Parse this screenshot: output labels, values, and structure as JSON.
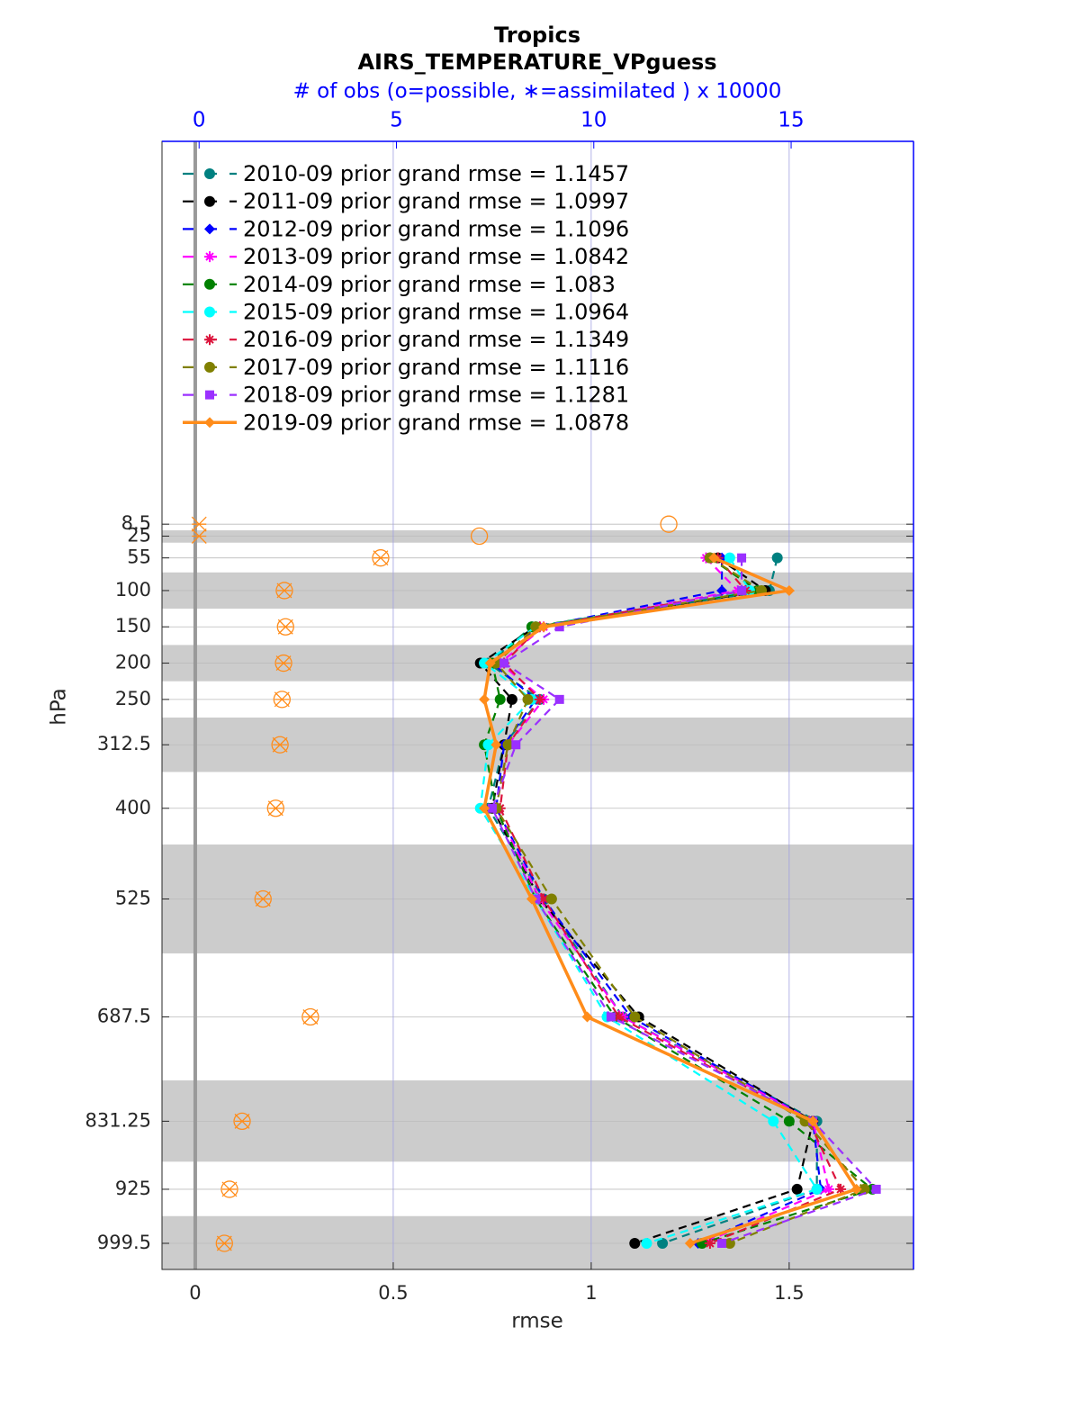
{
  "chart_data": {
    "type": "profile",
    "title": "Tropics",
    "subtitle": "AIRS_TEMPERATURE_VPguess",
    "x2_label": "# of obs (o=possible, ∗=assimilated ) x 10000",
    "x_label": "rmse",
    "y_label": "hPa",
    "xlim": [
      -0.084,
      1.814
    ],
    "xticks": [
      0,
      0.5,
      1,
      1.5
    ],
    "x2lim": [
      -0.94,
      18.1
    ],
    "x2ticks": [
      0,
      5,
      10,
      15
    ],
    "ylim": [
      1035.5,
      -519
    ],
    "yticks": [
      8.5,
      25,
      55,
      100,
      150,
      200,
      250,
      312.5,
      400,
      525,
      687.5,
      831.25,
      925,
      999.5
    ],
    "y": [
      8.5,
      25,
      55,
      100,
      150,
      200,
      250,
      312.5,
      400,
      525,
      687.5,
      831.25,
      925,
      999.5
    ],
    "bands": [
      [
        17,
        34
      ],
      [
        75,
        125
      ],
      [
        175,
        225
      ],
      [
        275,
        350
      ],
      [
        450,
        600
      ],
      [
        775,
        887
      ],
      [
        962,
        1035.5
      ]
    ],
    "grid": true,
    "obs_color": "#ff8c1a",
    "obs_possible": [
      11.9,
      7.1,
      4.6,
      2.16,
      2.19,
      2.14,
      2.1,
      2.05,
      1.94,
      1.62,
      2.82,
      1.09,
      0.77,
      0.64
    ],
    "obs_assimilated": [
      0,
      0,
      4.6,
      2.16,
      2.19,
      2.14,
      2.1,
      2.05,
      1.94,
      1.62,
      2.82,
      1.09,
      0.77,
      0.64
    ],
    "series": [
      {
        "name": "2010-09 prior grand rmse = 1.1457",
        "color": "#008080",
        "marker": "o",
        "linestyle": "dashed",
        "values": [
          null,
          null,
          1.47,
          1.45,
          0.85,
          0.74,
          0.87,
          0.78,
          0.74,
          0.88,
          1.08,
          1.57,
          1.57,
          1.18
        ]
      },
      {
        "name": "2011-09 prior grand rmse = 1.0997",
        "color": "#000000",
        "marker": "o",
        "linestyle": "dashed",
        "values": [
          null,
          null,
          1.32,
          1.44,
          0.86,
          0.72,
          0.8,
          0.78,
          0.75,
          0.87,
          1.12,
          1.56,
          1.52,
          1.11
        ]
      },
      {
        "name": "2012-09 prior grand rmse = 1.1096",
        "color": "#0000ff",
        "marker": "d",
        "linestyle": "dashed",
        "values": [
          null,
          null,
          1.33,
          1.33,
          0.87,
          0.75,
          0.86,
          0.78,
          0.76,
          0.88,
          1.1,
          1.56,
          1.58,
          1.27
        ]
      },
      {
        "name": "2013-09 prior grand rmse = 1.0842",
        "color": "#ff00ff",
        "marker": "*",
        "linestyle": "dashed",
        "values": [
          null,
          null,
          1.29,
          1.37,
          0.88,
          0.77,
          0.88,
          0.79,
          0.76,
          0.87,
          1.08,
          1.56,
          1.6,
          1.28
        ]
      },
      {
        "name": "2014-09 prior grand rmse = 1.083",
        "color": "#008000",
        "marker": "o",
        "linestyle": "dashed",
        "values": [
          null,
          null,
          1.3,
          1.42,
          0.85,
          0.75,
          0.77,
          0.73,
          0.76,
          0.86,
          1.06,
          1.5,
          1.71,
          1.28
        ]
      },
      {
        "name": "2015-09 prior grand rmse = 1.0964",
        "color": "#00ffff",
        "marker": "o",
        "linestyle": "dashed",
        "values": [
          null,
          null,
          1.35,
          1.4,
          0.86,
          0.73,
          0.85,
          0.74,
          0.72,
          0.86,
          1.04,
          1.46,
          1.57,
          1.14
        ]
      },
      {
        "name": "2016-09 prior grand rmse = 1.1349",
        "color": "#dc143c",
        "marker": "*",
        "linestyle": "dashed",
        "values": [
          null,
          null,
          1.32,
          1.39,
          0.87,
          0.78,
          0.87,
          0.79,
          0.77,
          0.88,
          1.07,
          1.55,
          1.63,
          1.3
        ]
      },
      {
        "name": "2017-09 prior grand rmse = 1.1116",
        "color": "#808000",
        "marker": "o",
        "linestyle": "dashed",
        "values": [
          null,
          null,
          1.3,
          1.43,
          0.86,
          0.76,
          0.84,
          0.79,
          0.76,
          0.9,
          1.11,
          1.54,
          1.69,
          1.35
        ]
      },
      {
        "name": "2018-09 prior grand rmse = 1.1281",
        "color": "#9b30ff",
        "marker": "s",
        "linestyle": "dashed",
        "values": [
          null,
          null,
          1.38,
          1.38,
          0.92,
          0.78,
          0.92,
          0.81,
          0.75,
          0.86,
          1.05,
          1.56,
          1.72,
          1.33
        ]
      },
      {
        "name": "2019-09 prior grand rmse = 1.0878",
        "color": "#ff8c1a",
        "marker": "d",
        "linestyle": "solid",
        "values": [
          null,
          null,
          1.31,
          1.5,
          0.88,
          0.745,
          0.73,
          0.76,
          0.73,
          0.85,
          0.99,
          1.56,
          1.67,
          1.25
        ]
      }
    ]
  }
}
